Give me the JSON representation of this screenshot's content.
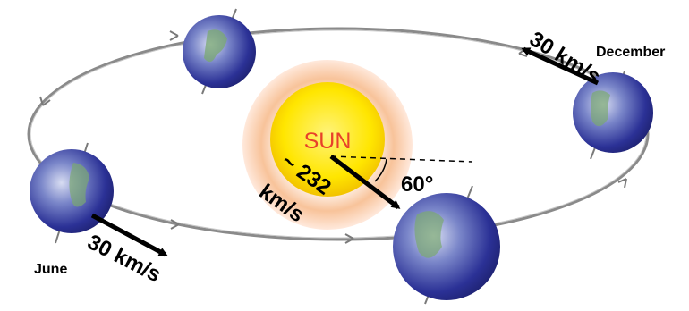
{
  "diagram": {
    "sun_label": "SUN",
    "sun_speed_value": "~ 232",
    "sun_speed_unit": "km/s",
    "angle_label": "60°",
    "earth_speed_december": "30 km/s",
    "earth_speed_june": "30 km/s",
    "month_december": "December",
    "month_june": "June"
  },
  "colors": {
    "orbit": "#8a8a8a",
    "sun_core": "#ffee22",
    "sun_glow": "#f4a060",
    "sun_label": "#e8402a",
    "earth_ocean": "#2a2f8c",
    "earth_land": "#6f9a66",
    "arrow": "#000000"
  }
}
